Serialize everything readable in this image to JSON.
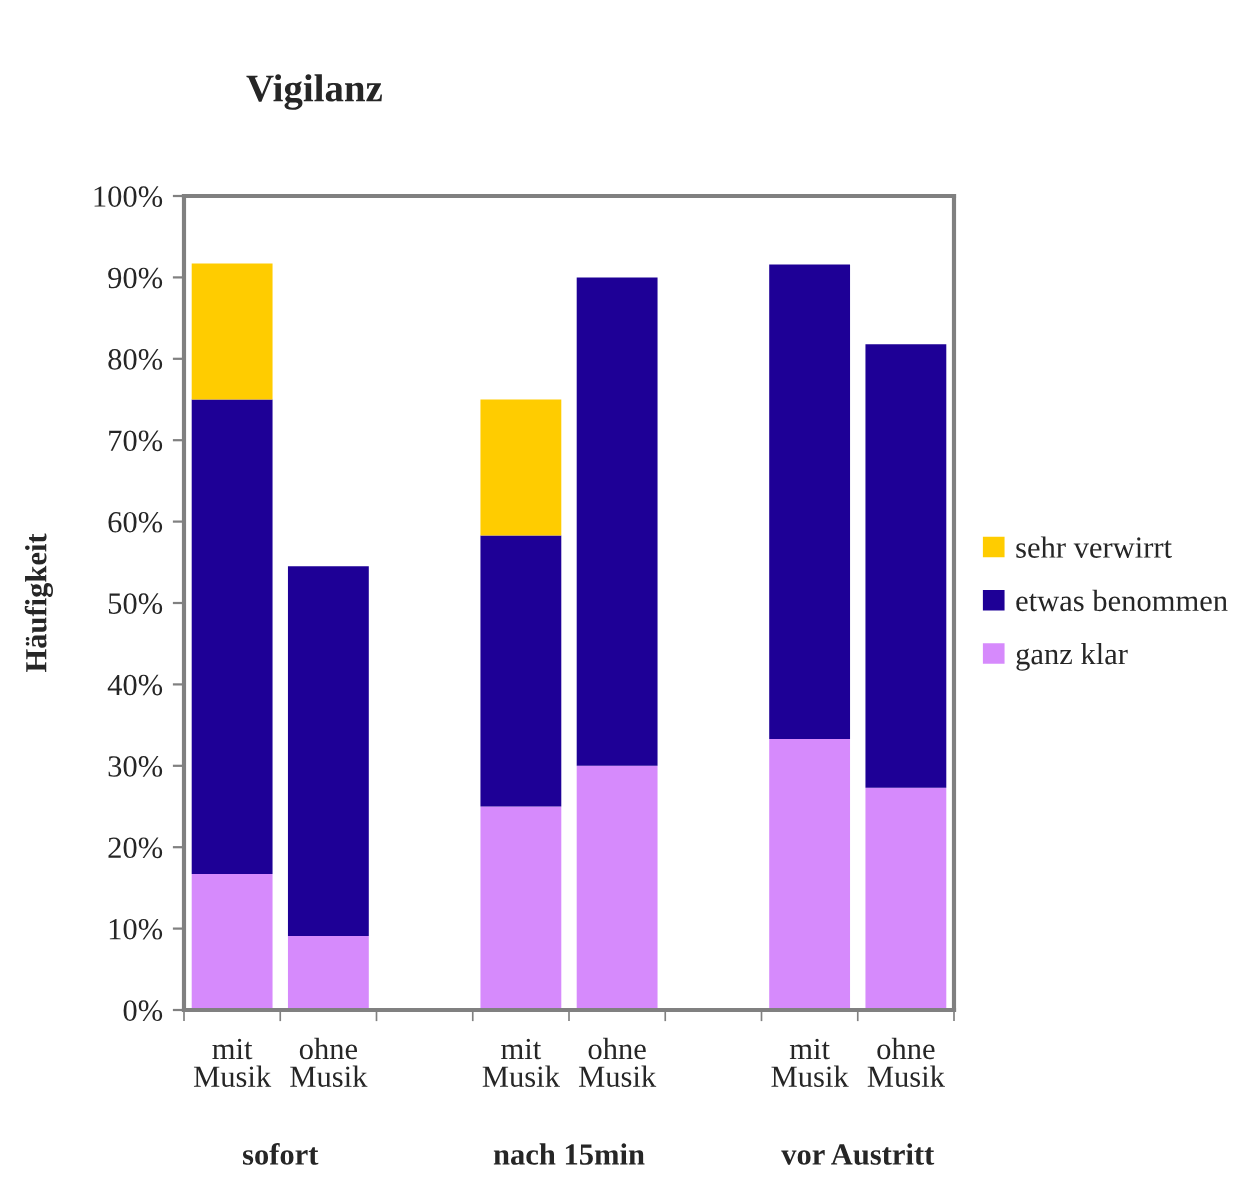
{
  "chart_data": {
    "type": "bar",
    "title": "Vigilanz",
    "ylabel": "Häufigkeit",
    "stacked": true,
    "categories": [
      "mit\nMusik",
      "ohne\nMusik",
      null,
      "mit\nMusik",
      "ohne\nMusik",
      null,
      "mit\nMusik",
      "ohne\nMusik"
    ],
    "series": [
      {
        "name": "ganz klar",
        "color": "#d68afc",
        "values": [
          16.7,
          9.1,
          null,
          25,
          30,
          null,
          33.3,
          27.3
        ]
      },
      {
        "name": "etwas benommen",
        "color": "#1e0096",
        "values": [
          58.3,
          45.4,
          null,
          33.3,
          60,
          null,
          58.3,
          54.5
        ]
      },
      {
        "name": "sehr verwirrt",
        "color": "#ffcc00",
        "values": [
          16.7,
          null,
          null,
          16.7,
          null,
          null,
          null,
          null
        ]
      }
    ],
    "ylim": [
      0,
      100
    ],
    "yticks": [
      {
        "value": 0,
        "label": "0%"
      },
      {
        "value": 10,
        "label": "10%"
      },
      {
        "value": 20,
        "label": "20%"
      },
      {
        "value": 30,
        "label": "30%"
      },
      {
        "value": 40,
        "label": "40%"
      },
      {
        "value": 50,
        "label": "50%"
      },
      {
        "value": 60,
        "label": "60%"
      },
      {
        "value": 70,
        "label": "70%"
      },
      {
        "value": 80,
        "label": "80%"
      },
      {
        "value": 90,
        "label": "90%"
      },
      {
        "value": 100,
        "label": "100%"
      }
    ],
    "annotations": [
      "sofort",
      "nach 15min",
      "vor Austritt"
    ],
    "legend": "right",
    "grid": false
  }
}
